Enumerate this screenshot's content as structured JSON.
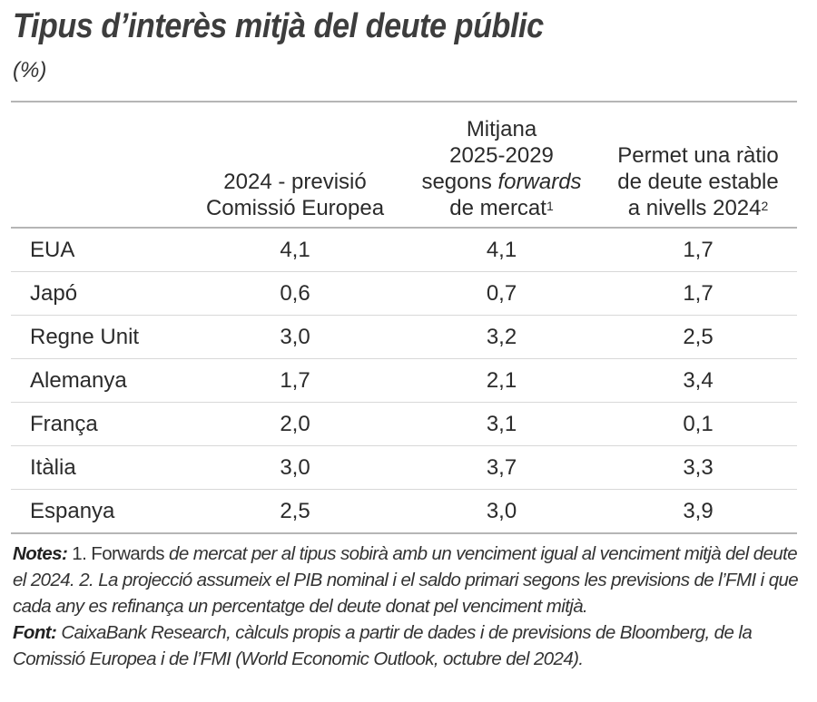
{
  "title": "Tipus d’interès mitjà del deute públic",
  "unit": "(%)",
  "chart_data": {
    "type": "table",
    "columns": [
      "",
      "2024 - previsió Comissió Europea",
      "Mitjana 2025-2029 segons forwards de mercat¹",
      "Permet una ràtio de deute estable a nivells 2024²"
    ],
    "header": {
      "c1": [
        "2024 - previsió",
        "Comissió Europea"
      ],
      "c2a": "Mitjana",
      "c2b": "2025-2029",
      "c2c": "segons ",
      "c2d": "forwards",
      "c2e": "de mercat",
      "c2sup": "1",
      "c3a": "Permet una ràtio",
      "c3b": "de deute estable",
      "c3c": "a nivells 2024",
      "c3sup": "2"
    },
    "rows": [
      {
        "label": "EUA",
        "values": [
          "4,1",
          "4,1",
          "1,7"
        ]
      },
      {
        "label": "Japó",
        "values": [
          "0,6",
          "0,7",
          "1,7"
        ]
      },
      {
        "label": "Regne Unit",
        "values": [
          "3,0",
          "3,2",
          "2,5"
        ]
      },
      {
        "label": "Alemanya",
        "values": [
          "1,7",
          "2,1",
          "3,4"
        ]
      },
      {
        "label": "França",
        "values": [
          "2,0",
          "3,1",
          "0,1"
        ]
      },
      {
        "label": "Itàlia",
        "values": [
          "3,0",
          "3,7",
          "3,3"
        ]
      },
      {
        "label": "Espanya",
        "values": [
          "2,5",
          "3,0",
          "3,9"
        ]
      }
    ]
  },
  "notes": {
    "notes_label": "Notes:",
    "n1": " 1. Forwards",
    "n2": " de mercat per al tipus sobirà amb un venciment igual al venciment mitjà del deute el 2024. 2. La projecció assumeix el PIB nominal i el saldo primari segons les previsions de l’FMI i que cada any es refinança un percentatge del deute donat pel venciment mitjà.",
    "font_label": "Font:",
    "font_text": " CaixaBank Research, càlculs propis a partir de dades i de previsions de Bloomberg, de la Comissió Europea i de l’FMI (World Economic Outlook, octubre del 2024)."
  }
}
